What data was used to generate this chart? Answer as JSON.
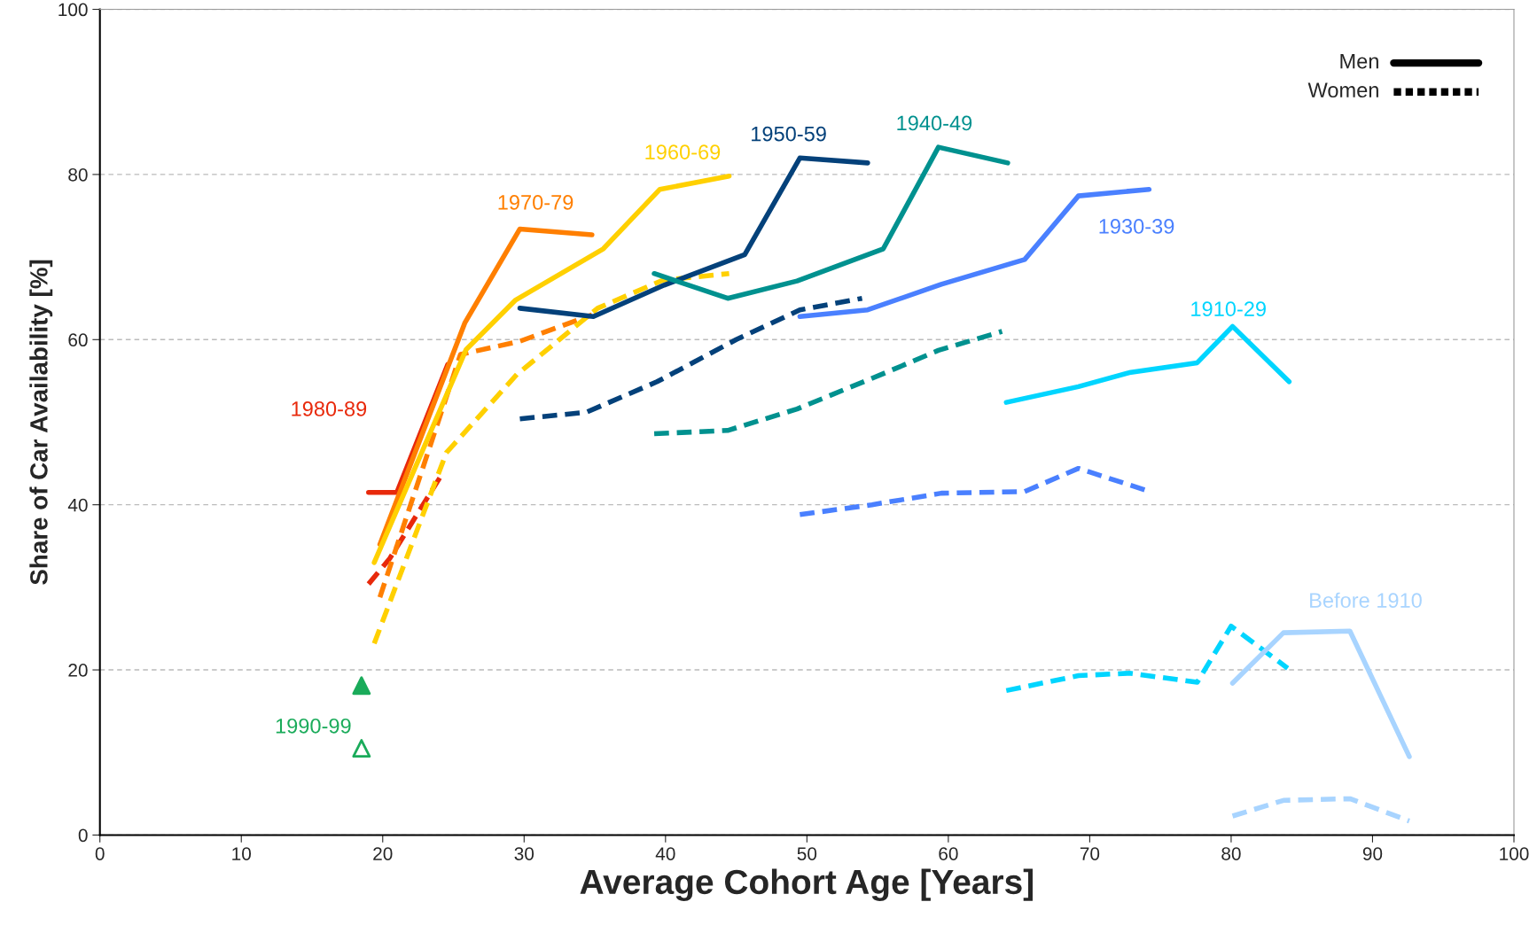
{
  "chart_data": {
    "type": "line",
    "xlabel": "Average Cohort Age [Years]",
    "ylabel": "Share of Car Availability [%]",
    "xlim": [
      0,
      100
    ],
    "xticks": [
      0,
      10,
      20,
      30,
      40,
      50,
      60,
      70,
      80,
      90,
      100
    ],
    "ylim": [
      0,
      100
    ],
    "yticks": [
      0,
      20,
      40,
      60,
      80,
      100
    ],
    "grid": "y",
    "annotations": [
      "Men",
      "Women"
    ],
    "series": [
      {
        "name": "1980-89",
        "color": "#e8290b",
        "line_style": "solid",
        "x": [
          19,
          21,
          24.6
        ],
        "values": [
          41.5,
          41.5,
          57
        ]
      },
      {
        "color": "#e8290b",
        "line_style": "dashed",
        "x": [
          19,
          20.5,
          24.3
        ],
        "values": [
          30.4,
          33.5,
          44
        ]
      },
      {
        "name": "1970-79",
        "color": "#ff7f00",
        "line_style": "solid",
        "x": [
          19.8,
          25.8,
          29.7,
          34.8
        ],
        "values": [
          35.2,
          62,
          73.4,
          72.7
        ]
      },
      {
        "color": "#ff7f00",
        "line_style": "dashed",
        "x": [
          19.8,
          25.5,
          29.7,
          34.8
        ],
        "values": [
          28.8,
          58.2,
          59.8,
          63
        ]
      },
      {
        "name": "1960-69",
        "color": "#ffd000",
        "line_style": "solid",
        "x": [
          19.4,
          25.9,
          29.4,
          35.6,
          39.6,
          44.5
        ],
        "values": [
          33,
          58.8,
          64.8,
          71,
          78.2,
          79.8
        ]
      },
      {
        "color": "#ffd000",
        "line_style": "dashed",
        "x": [
          19.4,
          24.5,
          29.5,
          35.2,
          39.8,
          44.5
        ],
        "values": [
          23.2,
          46.3,
          55.8,
          63.8,
          67.2,
          68
        ]
      },
      {
        "name": "1950-59",
        "color": "#04417a",
        "line_style": "solid",
        "x": [
          29.7,
          34.9,
          39.9,
          45.6,
          49.5,
          54.3
        ],
        "values": [
          63.8,
          62.8,
          66.6,
          70.3,
          82,
          81.4
        ]
      },
      {
        "color": "#04417a",
        "line_style": "dashed",
        "x": [
          29.7,
          34.4,
          39.4,
          45,
          49.5,
          53.9
        ],
        "values": [
          50.4,
          51.2,
          54.9,
          60,
          63.6,
          65
        ]
      },
      {
        "name": "1940-49",
        "color": "#00918f",
        "line_style": "solid",
        "x": [
          39.2,
          44.4,
          49.3,
          55.4,
          59.3,
          64.2
        ],
        "values": [
          68,
          65,
          67.1,
          71,
          83.3,
          81.4
        ]
      },
      {
        "color": "#00918f",
        "line_style": "dashed",
        "x": [
          39.2,
          44.4,
          49.3,
          55.3,
          59.3,
          63.8
        ],
        "values": [
          48.6,
          49,
          51.6,
          55.8,
          58.7,
          61
        ]
      },
      {
        "name": "1930-39",
        "color": "#4a80ff",
        "line_style": "solid",
        "x": [
          49.5,
          54.3,
          59.5,
          65.4,
          69.2,
          74.2
        ],
        "values": [
          62.8,
          63.6,
          66.7,
          69.7,
          77.4,
          78.2
        ]
      },
      {
        "color": "#4a80ff",
        "line_style": "dashed",
        "x": [
          49.5,
          54.6,
          59.5,
          65.4,
          69.2,
          73.9
        ],
        "values": [
          38.8,
          40,
          41.4,
          41.6,
          44.4,
          41.8
        ]
      },
      {
        "name": "1910-29",
        "color": "#00d5ff",
        "line_style": "solid",
        "x": [
          64.1,
          69.2,
          72.8,
          77.6,
          80.1,
          84.1
        ],
        "values": [
          52.4,
          54.3,
          56,
          57.2,
          61.6,
          54.9
        ]
      },
      {
        "color": "#00d5ff",
        "line_style": "dashed",
        "x": [
          64.1,
          69.2,
          72.8,
          77.6,
          80,
          84
        ],
        "values": [
          17.5,
          19.3,
          19.6,
          18.5,
          25.3,
          20.2
        ]
      },
      {
        "name": "Before 1910",
        "color": "#a8d4ff",
        "line_style": "solid",
        "x": [
          80.1,
          83.7,
          88.4,
          92.6
        ],
        "values": [
          18.4,
          24.5,
          24.7,
          9.5
        ]
      },
      {
        "color": "#a8d4ff",
        "line_style": "dashed",
        "x": [
          80.1,
          83.7,
          88.4,
          92.6
        ],
        "values": [
          2.3,
          4.2,
          4.4,
          1.7
        ]
      },
      {
        "name": "1990-99",
        "type": "scatter",
        "marker": "triangle",
        "line_style": "solid",
        "color": "#1aab5a",
        "x": [
          18.5
        ],
        "values": [
          18.1
        ]
      },
      {
        "type": "scatter",
        "marker": "triangle",
        "line_style": "dashed",
        "color": "#1aab5a",
        "x": [
          18.5
        ],
        "values": [
          10.5
        ]
      }
    ]
  }
}
